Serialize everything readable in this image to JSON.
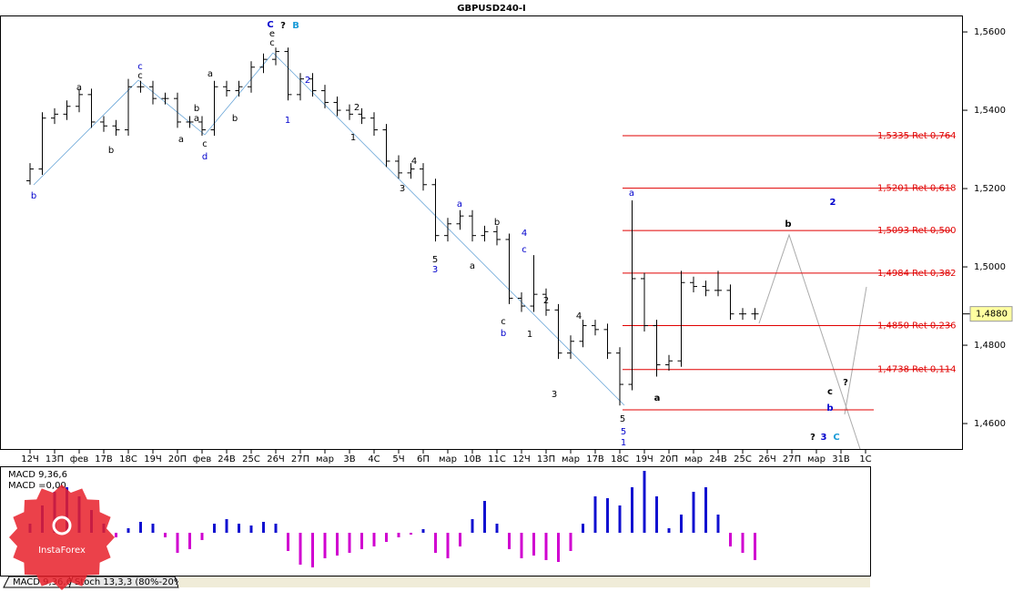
{
  "chart_data": [
    {
      "type": "ohlc",
      "title": "GBPUSD240-I",
      "categories": [
        "12Ч",
        null,
        "13П",
        null,
        "фев",
        null,
        "17В",
        null,
        "18С",
        null,
        "19Ч",
        null,
        "20П",
        null,
        "фев",
        null,
        "24В",
        null,
        "25С",
        null,
        "26Ч",
        null,
        "27П",
        null,
        "мар",
        null,
        "3В",
        null,
        "4С",
        null,
        "5Ч",
        null,
        "6П",
        null,
        "мар",
        null,
        "10В",
        null,
        "11С",
        null,
        "12Ч",
        null,
        "13П",
        null,
        "мар",
        null,
        "17В",
        null,
        "18С",
        null,
        "19Ч",
        null,
        "20П",
        null,
        "мар",
        null,
        "24В",
        null,
        "25С",
        null,
        "26Ч",
        null,
        "27П",
        null,
        "мар",
        null,
        "31В",
        null,
        "1С",
        null
      ],
      "open": [
        1.522,
        1.525,
        1.538,
        1.539,
        1.541,
        1.544,
        1.537,
        1.536,
        1.535,
        1.546,
        1.546,
        1.543,
        1.543,
        1.537,
        1.537,
        1.535,
        1.546,
        1.545,
        1.546,
        1.551,
        1.553,
        1.555,
        1.544,
        1.548,
        1.545,
        1.542,
        1.54,
        1.539,
        1.538,
        1.535,
        1.527,
        1.524,
        1.525,
        1.521,
        1.508,
        1.511,
        1.513,
        1.508,
        1.509,
        1.507,
        1.492,
        1.49,
        1.493,
        1.489,
        1.478,
        1.481,
        1.485,
        1.484,
        1.478,
        1.47,
        1.497,
        1.485,
        1.475,
        1.476,
        1.496,
        1.495,
        1.494,
        1.494,
        1.488,
        1.488,
        null,
        null,
        null,
        null,
        null,
        null,
        null,
        null,
        null,
        null
      ],
      "high": [
        1.5265,
        1.5395,
        1.5405,
        1.5425,
        1.5455,
        1.5455,
        1.5385,
        1.5375,
        1.548,
        1.5475,
        1.5475,
        1.5445,
        1.5445,
        1.5385,
        1.5385,
        1.5475,
        1.5475,
        1.5475,
        1.5525,
        1.5545,
        1.556,
        1.556,
        1.5495,
        1.5495,
        1.5465,
        1.5435,
        1.5415,
        1.5405,
        1.5395,
        1.5365,
        1.5285,
        1.5265,
        1.5265,
        1.5225,
        1.5125,
        1.5145,
        1.5145,
        1.5105,
        1.5105,
        1.5085,
        1.4935,
        1.503,
        1.4945,
        1.4905,
        1.4825,
        1.4865,
        1.4865,
        1.4855,
        1.4795,
        1.517,
        1.4985,
        1.4865,
        1.4775,
        1.499,
        1.4975,
        1.4965,
        1.499,
        1.4955,
        1.4895,
        1.4895,
        null,
        null,
        null,
        null,
        null,
        null,
        null,
        null,
        null,
        null
      ],
      "low": [
        1.521,
        1.5235,
        1.5365,
        1.5375,
        1.5395,
        1.5355,
        1.5345,
        1.5335,
        1.5335,
        1.5445,
        1.5415,
        1.5415,
        1.5355,
        1.5355,
        1.5335,
        1.5335,
        1.5435,
        1.5435,
        1.5445,
        1.5495,
        1.5515,
        1.5425,
        1.5425,
        1.5435,
        1.5405,
        1.5385,
        1.5375,
        1.5365,
        1.5335,
        1.5255,
        1.5225,
        1.5225,
        1.5195,
        1.5065,
        1.5065,
        1.5095,
        1.5065,
        1.5065,
        1.5055,
        1.4905,
        1.4885,
        1.4885,
        1.4875,
        1.4765,
        1.4765,
        1.4795,
        1.4825,
        1.4765,
        1.4646,
        1.4685,
        1.4835,
        1.472,
        1.4735,
        1.4745,
        1.4935,
        1.4925,
        1.4925,
        1.4865,
        1.4865,
        1.4865,
        null,
        null,
        null,
        null,
        null,
        null,
        null,
        null,
        null,
        null
      ],
      "close": [
        1.525,
        1.538,
        1.539,
        1.541,
        1.544,
        1.537,
        1.536,
        1.535,
        1.546,
        1.546,
        1.543,
        1.543,
        1.537,
        1.537,
        1.535,
        1.546,
        1.545,
        1.546,
        1.551,
        1.553,
        1.555,
        1.544,
        1.548,
        1.545,
        1.542,
        1.54,
        1.539,
        1.538,
        1.535,
        1.527,
        1.524,
        1.525,
        1.521,
        1.508,
        1.511,
        1.513,
        1.508,
        1.509,
        1.507,
        1.492,
        1.49,
        1.493,
        1.489,
        1.478,
        1.481,
        1.485,
        1.484,
        1.478,
        1.47,
        1.497,
        1.485,
        1.475,
        1.476,
        1.496,
        1.495,
        1.494,
        1.494,
        1.488,
        1.488,
        1.488,
        null,
        null,
        null,
        null,
        null,
        null,
        null,
        null,
        null,
        null
      ],
      "color": "#000000",
      "ylim": [
        1.4535,
        1.5642
      ],
      "yticks": [
        {
          "value": 1.56,
          "label": "1,5600"
        },
        {
          "value": 1.54,
          "label": "1,5400"
        },
        {
          "value": 1.52,
          "label": "1,5200"
        },
        {
          "value": 1.5,
          "label": "1,5000"
        },
        {
          "value": 1.48,
          "label": "1,4800"
        },
        {
          "value": 1.46,
          "label": "1,4600"
        }
      ],
      "current_price": {
        "value": 1.488,
        "label": "1,4880"
      },
      "levels": [
        {
          "value": 1.5335,
          "label": "1,5335 Ret 0,764"
        },
        {
          "value": 1.5201,
          "label": "1,5201 Ret 0,618"
        },
        {
          "value": 1.5093,
          "label": "1,5093 Ret 0,500"
        },
        {
          "value": 1.4984,
          "label": "1,4984 Ret 0,382"
        },
        {
          "value": 1.485,
          "label": "1,4850 Ret 0,236"
        },
        {
          "value": 1.4738,
          "label": "1,4738 Ret 0,114"
        }
      ],
      "level_color": "#e00000",
      "annotations": [
        "C",
        "?",
        "B",
        "e",
        "c",
        "b",
        "a",
        "c",
        "c",
        "b",
        "a",
        "c",
        "d",
        "a",
        "b",
        "a",
        "b",
        "2",
        "1",
        "2",
        "1",
        "4",
        "3",
        "a",
        "b",
        "a",
        "5",
        "3",
        "4",
        "c",
        "c",
        "b",
        "1",
        "2",
        "4",
        "3",
        "5",
        "5",
        "1",
        "a",
        "a",
        "b",
        "2",
        "c",
        "b",
        "?",
        "?",
        "3",
        "C"
      ]
    },
    {
      "type": "macd",
      "title": "MACD 9,36,6",
      "subtitle": "MACD =0,00",
      "values": [
        0.001,
        0.003,
        0.0045,
        0.005,
        0.004,
        0.0025,
        0.001,
        -0.0005,
        0.0005,
        0.0012,
        0.001,
        -0.0005,
        -0.0022,
        -0.0018,
        -0.0008,
        0.001,
        0.0015,
        0.001,
        0.0008,
        0.0012,
        0.001,
        -0.002,
        -0.0035,
        -0.0038,
        -0.0028,
        -0.0025,
        -0.0022,
        -0.0018,
        -0.0015,
        -0.001,
        -0.0005,
        -0.0002,
        0.0004,
        -0.0022,
        -0.0028,
        -0.0015,
        0.0015,
        0.0035,
        0.001,
        -0.0018,
        -0.0028,
        -0.0025,
        -0.003,
        -0.0032,
        -0.002,
        0.001,
        0.004,
        0.0038,
        0.003,
        0.005,
        0.0068,
        0.004,
        0.0005,
        0.002,
        0.0045,
        0.005,
        0.002,
        -0.0015,
        -0.0022,
        -0.003,
        null,
        null,
        null,
        null,
        null,
        null,
        null,
        null,
        null,
        null
      ],
      "ylim": [
        -0.0047,
        0.0073
      ],
      "pos_color": "#1010d0",
      "neg_color": "#d000d0"
    }
  ],
  "tabs": [
    "MACD 9,36,6",
    "Stoch 13,3,3 (80%-20%)"
  ],
  "watermark": "InstaForex"
}
